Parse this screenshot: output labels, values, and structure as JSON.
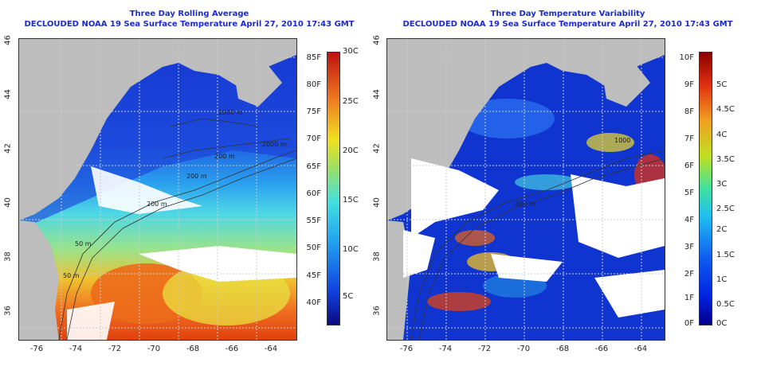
{
  "left_panel": {
    "title_line1": "Three Day Rolling Average",
    "title_line2": "DECLOUDED NOAA 19 Sea Surface Temperature April 27, 2010 17:43 GMT",
    "x_ticks": [
      "-76",
      "-74",
      "-72",
      "-70",
      "-68",
      "-66",
      "-64"
    ],
    "y_ticks": [
      "46",
      "44",
      "42",
      "40",
      "38",
      "36"
    ],
    "colorbar_f": [
      "85F",
      "80F",
      "75F",
      "70F",
      "65F",
      "60F",
      "55F",
      "50F",
      "45F",
      "40F"
    ],
    "colorbar_c": [
      "30C",
      "25C",
      "20C",
      "15C",
      "10C",
      "5C"
    ],
    "contour_labels": [
      "1000 m",
      "200 m",
      "2000 m",
      "200 m",
      "50 m",
      "50 m",
      "200 m"
    ]
  },
  "right_panel": {
    "title_line1": "Three Day Temperature Variability",
    "title_line2": "DECLOUDED NOAA 19 Sea Surface Temperature April 27, 2010 17:43 GMT",
    "x_ticks": [
      "-76",
      "-74",
      "-72",
      "-70",
      "-68",
      "-66",
      "-64"
    ],
    "y_ticks": [
      "46",
      "44",
      "42",
      "40",
      "38",
      "36"
    ],
    "colorbar_f": [
      "10F",
      "9F",
      "8F",
      "7F",
      "6F",
      "5F",
      "4F",
      "3F",
      "2F",
      "1F",
      "0F"
    ],
    "colorbar_c": [
      "5C",
      "4.5C",
      "4C",
      "3.5C",
      "3C",
      "2.5C",
      "2C",
      "1.5C",
      "1C",
      "0.5C",
      "0C"
    ],
    "contour_labels": [
      "200 m",
      "1000"
    ]
  },
  "colors": {
    "title": "#1a2bd0",
    "land": "#bdbdbd",
    "cloud": "#ffffff"
  }
}
